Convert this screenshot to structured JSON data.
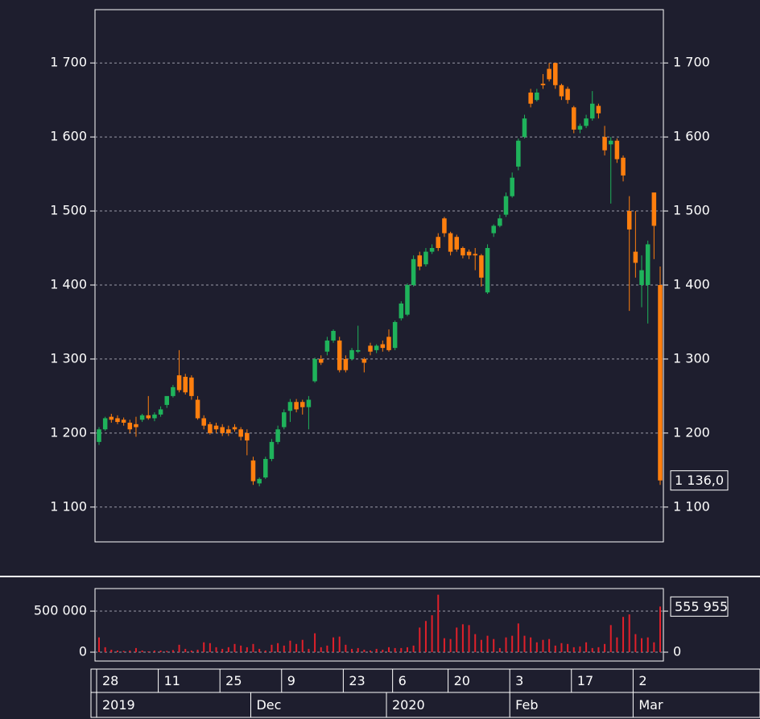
{
  "chart_data": {
    "type": "candlestick",
    "up_color": "#1fb35b",
    "down_color": "#ff7f0e",
    "label_color": "#ff2a2a",
    "grid": true,
    "ylim": [
      1053,
      1772
    ],
    "yticks": [
      {
        "value": 1100,
        "label": "1 100"
      },
      {
        "value": 1200,
        "label": "1 200"
      },
      {
        "value": 1300,
        "label": "1 300"
      },
      {
        "value": 1400,
        "label": "1 400"
      },
      {
        "value": 1500,
        "label": "1 500"
      },
      {
        "value": 1600,
        "label": "1 600"
      },
      {
        "value": 1700,
        "label": "1 700"
      }
    ],
    "categories": [
      "28",
      null,
      null,
      null,
      null,
      null,
      null,
      null,
      null,
      null,
      "11",
      null,
      null,
      null,
      null,
      null,
      null,
      null,
      null,
      null,
      "25",
      null,
      null,
      null,
      null,
      null,
      null,
      null,
      null,
      null,
      "9",
      null,
      null,
      null,
      null,
      null,
      null,
      null,
      null,
      null,
      "23",
      null,
      null,
      null,
      null,
      null,
      null,
      null,
      "6",
      null,
      null,
      null,
      null,
      null,
      null,
      null,
      null,
      "20",
      null,
      null,
      null,
      null,
      null,
      null,
      null,
      null,
      null,
      "3",
      null,
      null,
      null,
      null,
      null,
      null,
      null,
      null,
      null,
      "17",
      null,
      null,
      null,
      null,
      null,
      null,
      null,
      null,
      null,
      "2",
      null,
      null,
      null,
      null
    ],
    "periods": [
      "2019",
      null,
      null,
      null,
      null,
      null,
      null,
      null,
      null,
      null,
      null,
      null,
      null,
      null,
      null,
      null,
      null,
      null,
      null,
      null,
      null,
      null,
      null,
      null,
      null,
      "Dec",
      null,
      null,
      null,
      null,
      null,
      null,
      null,
      null,
      null,
      null,
      null,
      null,
      null,
      null,
      null,
      null,
      null,
      null,
      null,
      null,
      null,
      "2020",
      null,
      null,
      null,
      null,
      null,
      null,
      null,
      null,
      null,
      null,
      null,
      null,
      null,
      null,
      null,
      null,
      null,
      null,
      null,
      "Feb",
      null,
      null,
      null,
      null,
      null,
      null,
      null,
      null,
      null,
      null,
      null,
      null,
      null,
      null,
      null,
      null,
      null,
      null,
      null,
      "Mar",
      null,
      null,
      null,
      null
    ],
    "open": [
      1188,
      1205,
      1222,
      1220,
      1218,
      1214,
      1212,
      1218,
      1224,
      1220,
      1225,
      1238,
      1250,
      1278,
      1276,
      1275,
      1245,
      1220,
      1212,
      1210,
      1208,
      1205,
      1208,
      1205,
      1200,
      1163,
      1132,
      1140,
      1165,
      1188,
      1208,
      1230,
      1242,
      1242,
      1235,
      1270,
      1300,
      1310,
      1325,
      1325,
      1300,
      1300,
      1310,
      1300,
      1318,
      1312,
      1320,
      1330,
      1315,
      1355,
      1360,
      1400,
      1440,
      1428,
      1445,
      1465,
      1490,
      1470,
      1465,
      1450,
      1445,
      1442,
      1440,
      1390,
      1470,
      1480,
      1495,
      1520,
      1560,
      1600,
      1660,
      1650,
      1672,
      1692,
      1700,
      1670,
      1665,
      1640,
      1610,
      1615,
      1625,
      1642,
      1600,
      1590,
      1595,
      1572,
      1500,
      1445,
      1400,
      1400,
      1525,
      1400
    ],
    "high": [
      1208,
      1222,
      1226,
      1224,
      1221,
      1218,
      1222,
      1226,
      1250,
      1228,
      1236,
      1248,
      1265,
      1312,
      1280,
      1278,
      1250,
      1224,
      1215,
      1214,
      1212,
      1210,
      1212,
      1208,
      1205,
      1168,
      1140,
      1168,
      1192,
      1210,
      1232,
      1246,
      1246,
      1245,
      1250,
      1302,
      1305,
      1330,
      1340,
      1330,
      1305,
      1315,
      1345,
      1302,
      1322,
      1320,
      1325,
      1340,
      1352,
      1378,
      1402,
      1440,
      1445,
      1450,
      1455,
      1470,
      1492,
      1472,
      1468,
      1452,
      1448,
      1450,
      1442,
      1455,
      1482,
      1495,
      1525,
      1552,
      1598,
      1630,
      1665,
      1665,
      1685,
      1700,
      1700,
      1672,
      1668,
      1642,
      1618,
      1630,
      1662,
      1645,
      1615,
      1600,
      1598,
      1575,
      1520,
      1500,
      1440,
      1460,
      1525,
      1425
    ],
    "low": [
      1184,
      1203,
      1214,
      1212,
      1210,
      1200,
      1195,
      1215,
      1218,
      1216,
      1222,
      1234,
      1248,
      1255,
      1252,
      1245,
      1218,
      1205,
      1198,
      1200,
      1196,
      1196,
      1202,
      1190,
      1170,
      1130,
      1128,
      1138,
      1162,
      1185,
      1205,
      1215,
      1228,
      1225,
      1205,
      1268,
      1292,
      1305,
      1322,
      1282,
      1282,
      1298,
      1308,
      1282,
      1305,
      1308,
      1310,
      1310,
      1312,
      1352,
      1358,
      1398,
      1420,
      1425,
      1442,
      1446,
      1465,
      1440,
      1445,
      1436,
      1435,
      1420,
      1398,
      1388,
      1465,
      1478,
      1492,
      1518,
      1555,
      1598,
      1640,
      1648,
      1665,
      1675,
      1665,
      1650,
      1645,
      1605,
      1605,
      1612,
      1622,
      1625,
      1575,
      1510,
      1565,
      1540,
      1365,
      1410,
      1370,
      1348,
      1435,
      1130
    ],
    "close": [
      1205,
      1220,
      1218,
      1215,
      1214,
      1205,
      1208,
      1224,
      1220,
      1225,
      1232,
      1250,
      1262,
      1258,
      1255,
      1250,
      1220,
      1210,
      1200,
      1205,
      1200,
      1200,
      1205,
      1195,
      1190,
      1135,
      1138,
      1165,
      1188,
      1205,
      1228,
      1242,
      1232,
      1235,
      1245,
      1300,
      1295,
      1325,
      1338,
      1285,
      1285,
      1312,
      1312,
      1295,
      1310,
      1318,
      1315,
      1312,
      1350,
      1375,
      1400,
      1435,
      1425,
      1445,
      1450,
      1450,
      1470,
      1445,
      1448,
      1440,
      1440,
      1440,
      1410,
      1450,
      1480,
      1490,
      1520,
      1545,
      1595,
      1625,
      1645,
      1660,
      1670,
      1678,
      1670,
      1655,
      1650,
      1610,
      1615,
      1625,
      1645,
      1632,
      1582,
      1595,
      1570,
      1548,
      1475,
      1430,
      1420,
      1455,
      1480,
      1136
    ],
    "close_label": {
      "value": 1136,
      "label": "1 136,0"
    },
    "volume": {
      "ylim": [
        -108000,
        775000
      ],
      "yticks": [
        0,
        {
          "value": 500000,
          "label": "500 000"
        }
      ],
      "color": "#e0202a",
      "values": [
        180000,
        60000,
        30000,
        20000,
        15000,
        20000,
        50000,
        20000,
        10000,
        20000,
        20000,
        15000,
        25000,
        90000,
        40000,
        20000,
        30000,
        120000,
        110000,
        60000,
        40000,
        60000,
        100000,
        80000,
        60000,
        100000,
        40000,
        20000,
        90000,
        110000,
        80000,
        140000,
        100000,
        150000,
        40000,
        230000,
        60000,
        80000,
        180000,
        190000,
        90000,
        40000,
        50000,
        30000,
        20000,
        40000,
        30000,
        60000,
        50000,
        50000,
        60000,
        80000,
        300000,
        380000,
        450000,
        700000,
        170000,
        160000,
        300000,
        340000,
        330000,
        220000,
        150000,
        200000,
        160000,
        50000,
        180000,
        200000,
        350000,
        200000,
        180000,
        120000,
        150000,
        160000,
        80000,
        110000,
        100000,
        60000,
        70000,
        120000,
        50000,
        60000,
        100000,
        330000,
        180000,
        430000,
        460000,
        220000,
        170000,
        180000,
        120000,
        555955
      ],
      "last_label": {
        "value": 555955,
        "label": "555 955"
      }
    }
  }
}
